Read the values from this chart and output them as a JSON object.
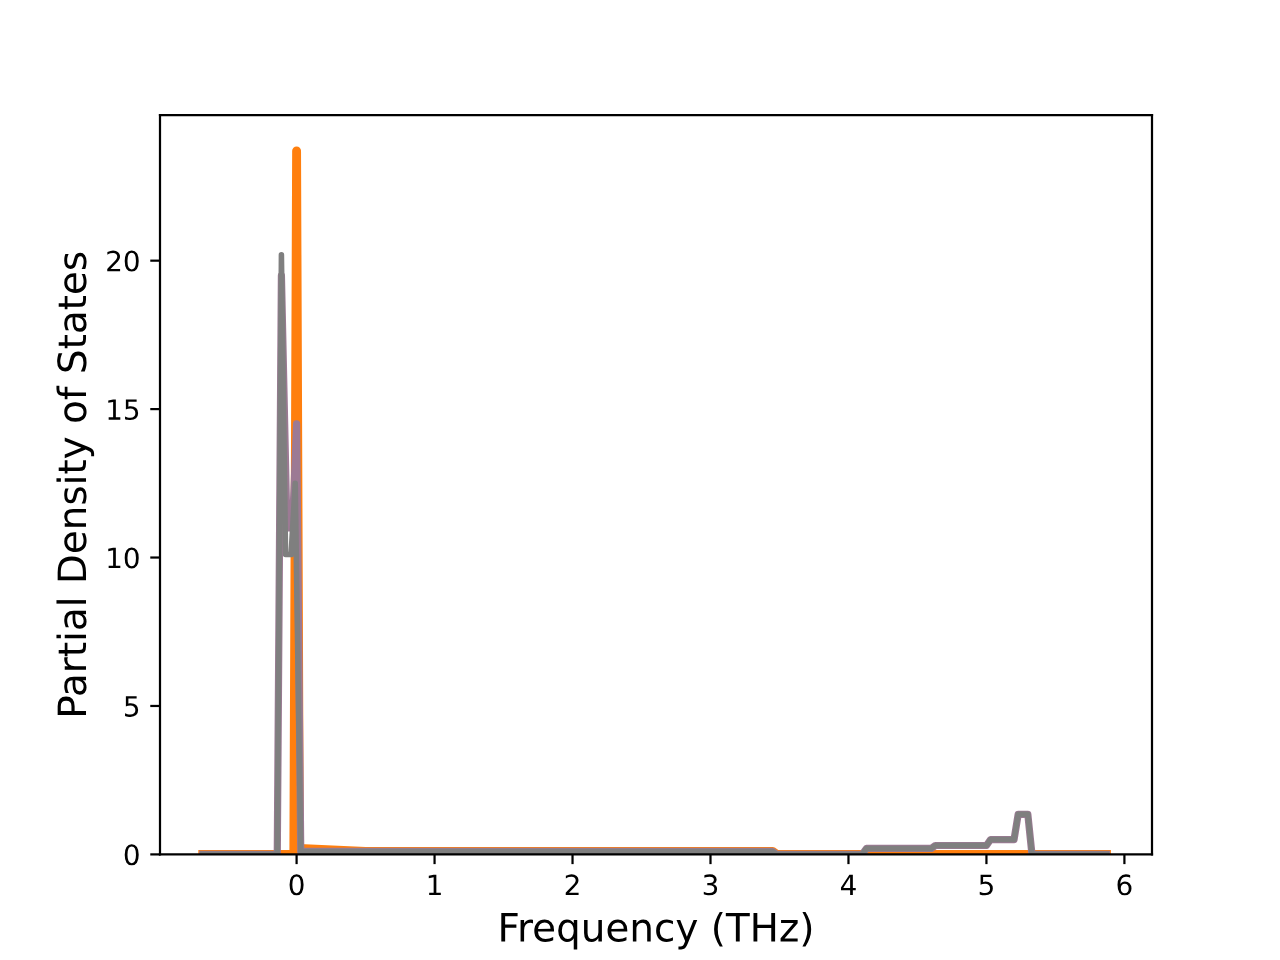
{
  "chart_data": {
    "type": "line",
    "xlabel": "Frequency (THz)",
    "ylabel": "Partial Density of States",
    "xlim": [
      -0.99,
      6.2
    ],
    "ylim": [
      0,
      24.9
    ],
    "xticks": [
      0,
      1,
      2,
      3,
      4,
      5,
      6
    ],
    "yticks": [
      0,
      5,
      10,
      15,
      20
    ],
    "grid": false,
    "legend": false,
    "series": [
      {
        "color": "#ff7f0e",
        "x": [
          -0.68,
          -0.05,
          -0.02,
          0.0,
          0.02,
          0.5,
          3.45,
          3.48,
          4.1,
          5.33,
          5.87
        ],
        "values": [
          0,
          0,
          0,
          23.7,
          0.2,
          0.1,
          0.1,
          0,
          0,
          0,
          0
        ]
      },
      {
        "color": "#9c7a94",
        "x": [
          -0.68,
          -0.14,
          -0.11,
          -0.07,
          -0.03,
          0.0,
          0.03,
          0.5,
          3.45,
          3.48,
          4.1,
          4.13,
          4.6,
          4.63,
          5.0,
          5.03,
          5.2,
          5.23,
          5.3,
          5.33,
          5.87
        ],
        "values": [
          0,
          0,
          19.5,
          11.0,
          11.0,
          14.5,
          0.1,
          0.1,
          0.1,
          0,
          0,
          0.2,
          0.2,
          0.3,
          0.3,
          0.5,
          0.5,
          1.35,
          1.35,
          0,
          0
        ]
      },
      {
        "color": "#7f7f7f",
        "x": [
          -0.68,
          -0.14,
          -0.11,
          -0.08,
          -0.04,
          -0.01,
          0.03,
          0.5,
          3.45,
          3.48,
          4.1,
          4.13,
          4.6,
          4.63,
          5.0,
          5.03,
          5.2,
          5.23,
          5.3,
          5.33,
          5.87
        ],
        "values": [
          0,
          0,
          20.2,
          10.1,
          10.1,
          12.5,
          0.1,
          0.1,
          0.1,
          0,
          0,
          0.2,
          0.2,
          0.3,
          0.3,
          0.5,
          0.5,
          1.35,
          1.35,
          0,
          0
        ]
      }
    ]
  }
}
